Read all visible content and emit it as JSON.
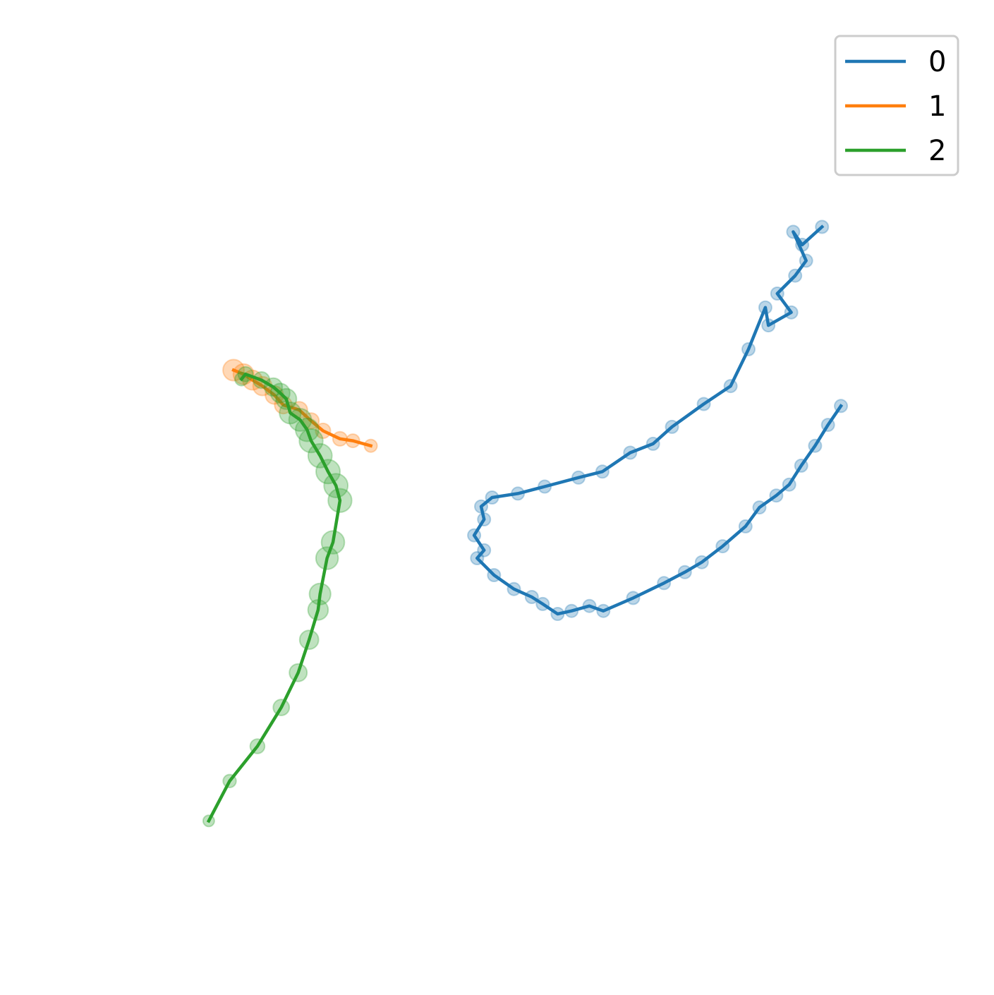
{
  "chart_data": {
    "type": "scatter",
    "title": "",
    "xlabel": "",
    "ylabel": "",
    "axes_visible": false,
    "grid": false,
    "legend_position": "top-right",
    "x_range": [
      0,
      10
    ],
    "y_range": [
      0,
      10
    ],
    "series": [
      {
        "name": "0",
        "color": "#1f77b4",
        "points": [
          [
            8.27,
            7.72
          ],
          [
            8.07,
            7.54
          ],
          [
            7.98,
            7.67
          ],
          [
            8.11,
            7.38
          ],
          [
            8.0,
            7.23
          ],
          [
            7.82,
            7.05
          ],
          [
            7.96,
            6.86
          ],
          [
            7.73,
            6.73
          ],
          [
            7.7,
            6.91
          ],
          [
            7.53,
            6.49
          ],
          [
            7.35,
            6.12
          ],
          [
            7.08,
            5.94
          ],
          [
            6.76,
            5.71
          ],
          [
            6.57,
            5.54
          ],
          [
            6.34,
            5.45
          ],
          [
            6.06,
            5.26
          ],
          [
            5.82,
            5.2
          ],
          [
            5.48,
            5.11
          ],
          [
            5.21,
            5.04
          ],
          [
            4.95,
            5.0
          ],
          [
            4.84,
            4.91
          ],
          [
            4.87,
            4.78
          ],
          [
            4.77,
            4.62
          ],
          [
            4.87,
            4.47
          ],
          [
            4.8,
            4.39
          ],
          [
            4.97,
            4.22
          ],
          [
            5.17,
            4.08
          ],
          [
            5.35,
            4.0
          ],
          [
            5.46,
            3.93
          ],
          [
            5.61,
            3.83
          ],
          [
            5.75,
            3.86
          ],
          [
            5.93,
            3.91
          ],
          [
            6.07,
            3.86
          ],
          [
            6.37,
            3.99
          ],
          [
            6.68,
            4.14
          ],
          [
            6.89,
            4.25
          ],
          [
            7.06,
            4.35
          ],
          [
            7.27,
            4.51
          ],
          [
            7.5,
            4.71
          ],
          [
            7.64,
            4.9
          ],
          [
            7.81,
            5.02
          ],
          [
            7.94,
            5.13
          ],
          [
            8.06,
            5.32
          ],
          [
            8.2,
            5.52
          ],
          [
            8.33,
            5.73
          ],
          [
            8.46,
            5.92
          ]
        ]
      },
      {
        "name": "1",
        "color": "#ff7f0e",
        "points": [
          [
            2.35,
            6.28
          ],
          [
            2.45,
            6.24
          ],
          [
            2.54,
            6.18
          ],
          [
            2.64,
            6.12
          ],
          [
            2.76,
            6.03
          ],
          [
            2.85,
            5.93
          ],
          [
            3.01,
            5.88
          ],
          [
            3.13,
            5.77
          ],
          [
            3.25,
            5.67
          ],
          [
            3.42,
            5.59
          ],
          [
            3.55,
            5.57
          ],
          [
            3.73,
            5.52
          ]
        ]
      },
      {
        "name": "2",
        "color": "#2ca02c",
        "points": [
          [
            2.43,
            6.19
          ],
          [
            2.47,
            6.24
          ],
          [
            2.63,
            6.18
          ],
          [
            2.75,
            6.11
          ],
          [
            2.82,
            6.05
          ],
          [
            2.88,
            5.99
          ],
          [
            2.92,
            5.85
          ],
          [
            3.02,
            5.78
          ],
          [
            3.09,
            5.68
          ],
          [
            3.13,
            5.57
          ],
          [
            3.22,
            5.42
          ],
          [
            3.3,
            5.26
          ],
          [
            3.38,
            5.12
          ],
          [
            3.42,
            4.97
          ],
          [
            3.35,
            4.55
          ],
          [
            3.29,
            4.39
          ],
          [
            3.22,
            4.03
          ],
          [
            3.2,
            3.87
          ],
          [
            3.11,
            3.57
          ],
          [
            3.0,
            3.24
          ],
          [
            2.83,
            2.89
          ],
          [
            2.59,
            2.5
          ],
          [
            2.31,
            2.15
          ],
          [
            2.1,
            1.75
          ]
        ]
      }
    ]
  }
}
